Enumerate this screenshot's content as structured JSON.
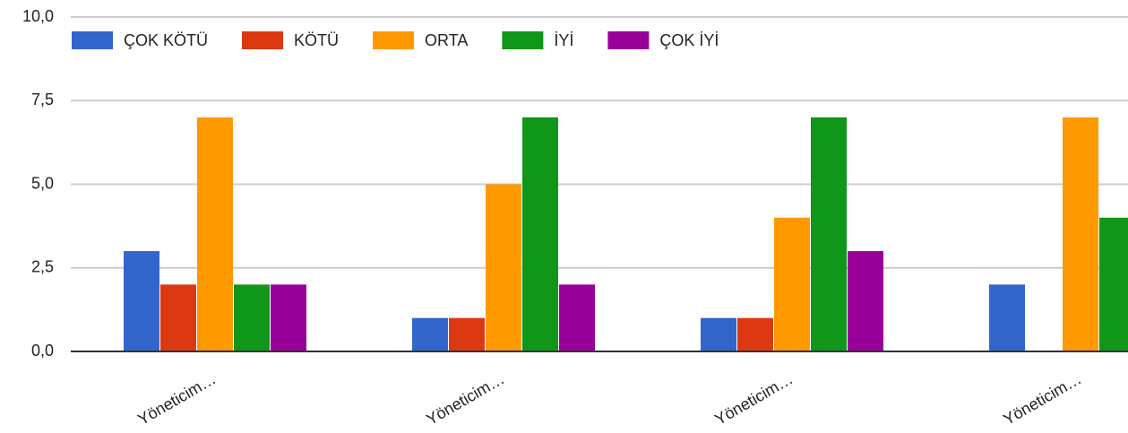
{
  "chart_data": {
    "type": "bar",
    "categories": [
      "Yöneticim…",
      "Yöneticim…",
      "Yöneticim…",
      "Yöneticim…"
    ],
    "series": [
      {
        "name": "ÇOK KÖTÜ",
        "color": "#3366cc",
        "values": [
          3,
          1,
          1,
          2
        ]
      },
      {
        "name": "KÖTÜ",
        "color": "#dc3912",
        "values": [
          2,
          1,
          1,
          0
        ]
      },
      {
        "name": "ORTA",
        "color": "#ff9900",
        "values": [
          7,
          5,
          4,
          7
        ]
      },
      {
        "name": "İYİ",
        "color": "#109618",
        "values": [
          2,
          7,
          7,
          4
        ]
      },
      {
        "name": "ÇOK İYİ",
        "color": "#990099",
        "values": [
          2,
          2,
          3,
          null
        ]
      }
    ],
    "ylim": [
      0,
      10
    ],
    "yticks": [
      {
        "value": 0,
        "label": "0,0"
      },
      {
        "value": 2.5,
        "label": "2,5"
      },
      {
        "value": 5,
        "label": "5,0"
      },
      {
        "value": 7.5,
        "label": "7,5"
      },
      {
        "value": 10,
        "label": "10,0"
      }
    ],
    "grid": true,
    "legend": "top"
  }
}
